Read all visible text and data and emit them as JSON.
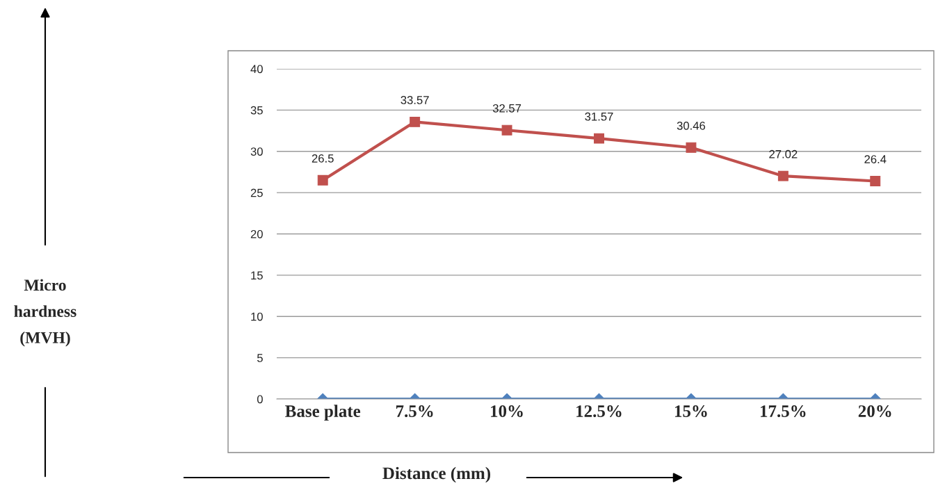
{
  "chart_data": {
    "type": "line",
    "xlabel": "Distance (mm)",
    "annotations": [
      "Micro\nhardness\n(MVH)"
    ],
    "categories": [
      "Base plate",
      "7.5%",
      "10%",
      "12.5%",
      "15%",
      "17.5%",
      "20%"
    ],
    "series": [
      {
        "color": "#4f81bd",
        "marker": "diamond",
        "values": [
          0,
          0,
          0,
          0,
          0,
          0,
          0
        ]
      },
      {
        "color": "#c0504d",
        "marker": "square",
        "values": [
          26.5,
          33.57,
          32.57,
          31.57,
          30.46,
          27.02,
          26.4
        ],
        "value_labels": [
          "26.5",
          "33.57",
          "32.57",
          "31.57",
          "30.46",
          "27.02",
          "26.4"
        ]
      }
    ],
    "ylim": [
      0,
      40
    ],
    "yticks": [
      0,
      5,
      10,
      15,
      20,
      25,
      30,
      35,
      40
    ],
    "grid": "y",
    "legend": false,
    "line_style": "solid"
  }
}
